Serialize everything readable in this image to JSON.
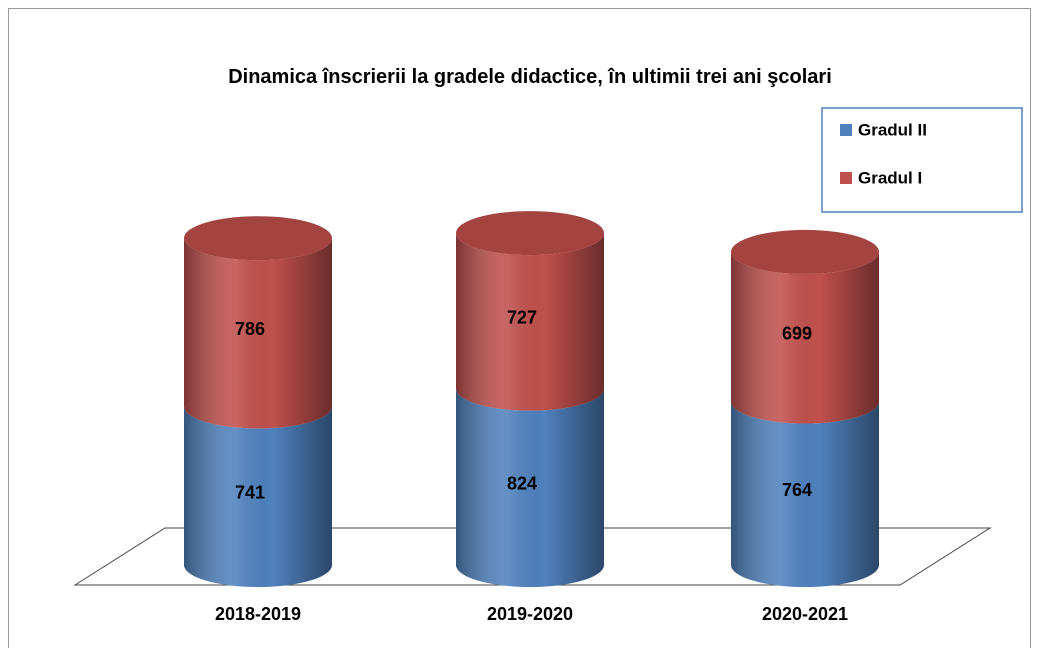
{
  "chart_data": {
    "type": "bar3d-stacked-cylinder",
    "title": "Dinamica înscrierii la gradele didactice, în ultimii trei ani şcolari",
    "categories": [
      "2018-2019",
      "2019-2020",
      "2020-2021"
    ],
    "series": [
      {
        "name": "Gradul II",
        "color": "#4f81bd",
        "values": [
          741,
          824,
          764
        ]
      },
      {
        "name": "Gradul I",
        "color": "#c0504d",
        "values": [
          786,
          727,
          699
        ]
      }
    ],
    "legend": "top-right"
  }
}
